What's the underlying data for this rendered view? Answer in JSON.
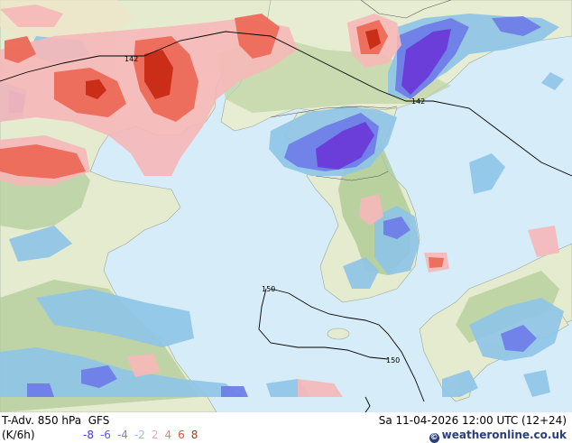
{
  "footer": {
    "title": "T-Adv. 850 hPa  GFS",
    "valid": "Sa 11-04-2026 12:00 UTC (12+24)",
    "units": "(K/6h)",
    "credit": "weatheronline.co.uk"
  },
  "legend": [
    {
      "label": "-8",
      "color": "#3b3bd6"
    },
    {
      "label": "-6",
      "color": "#5a5ae0"
    },
    {
      "label": "-4",
      "color": "#7f7fe6"
    },
    {
      "label": "-2",
      "color": "#9fb8e6"
    },
    {
      "label": "2",
      "color": "#f5a6a6"
    },
    {
      "label": "4",
      "color": "#ef7c6c"
    },
    {
      "label": "6",
      "color": "#e5503a"
    },
    {
      "label": "8",
      "color": "#cc2a1a"
    }
  ],
  "isobars": {
    "label_142_a": "142",
    "label_142_b": "142",
    "label_150_a": "150",
    "label_150_b": "150"
  },
  "colors": {
    "sea": "#d6ecf8",
    "land": "#e6ecd2",
    "negative_light": "#8ec5e8",
    "negative_mid": "#6f7ee8",
    "negative_strong": "#6a3ad8",
    "positive_light": "#f6b8b8",
    "positive_mid": "#ee6a5a",
    "positive_strong": "#c82a14"
  }
}
